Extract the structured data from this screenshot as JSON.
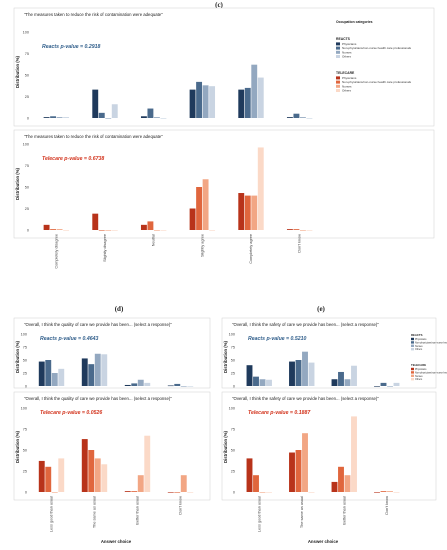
{
  "chart_data": [
    {
      "panel": "(c)",
      "type": "bar",
      "question": "\"The measures taken to reduce the risk of contamination were adequate\"",
      "annotation": "Reacts   p-value  = 0.2918",
      "ylabel": "Distribution (%)",
      "ylim": [
        0,
        100
      ],
      "yticks": [
        0,
        25,
        50,
        75,
        100
      ],
      "categories": [
        "Completely disagree",
        "Slightly disagree",
        "Neutral",
        "Slightly agree",
        "Completely agree",
        "Don't know"
      ],
      "grid": false,
      "series": [
        {
          "name": "Physicians",
          "color": "#1f3a5c",
          "values": [
            1,
            33,
            2,
            33,
            33,
            1
          ]
        },
        {
          "name": "Non-physicians/non-nurse health care professionals",
          "color": "#4a6a8c",
          "values": [
            2,
            6,
            11,
            42,
            35,
            5
          ]
        },
        {
          "name": "Nurses",
          "color": "#93a8c0",
          "values": [
            1,
            0,
            1,
            38,
            62,
            1
          ]
        },
        {
          "name": "Others",
          "color": "#c9d4e2",
          "values": [
            1,
            16,
            0,
            37,
            47,
            0
          ]
        }
      ],
      "legend": {
        "title": "Occupation categories",
        "group": "REACTS",
        "items": [
          "Physicians",
          "Non-physicians/non-nurse health care professionals",
          "Nurses",
          "Others"
        ]
      }
    },
    {
      "panel": "(c)",
      "type": "bar",
      "question": "\"The measures taken to reduce the risk of contamination were adequate\"",
      "annotation": "Telecare   p-value  = 0.6738",
      "ylabel": "Distribution (%)",
      "ylim": [
        0,
        100
      ],
      "yticks": [
        0,
        25,
        50,
        75,
        100
      ],
      "categories": [
        "Completely disagree",
        "Slightly disagree",
        "Neutral",
        "Slightly agree",
        "Completely agree",
        "Don't know"
      ],
      "grid": false,
      "series": [
        {
          "name": "Physicians",
          "color": "#b8331a",
          "values": [
            6,
            19,
            6,
            25,
            43,
            1
          ]
        },
        {
          "name": "Non-physicians/non-nurse health care professionals",
          "color": "#e0663d",
          "values": [
            1,
            0,
            10,
            50,
            40,
            1
          ]
        },
        {
          "name": "Nurses",
          "color": "#f2a684",
          "values": [
            1,
            0,
            0,
            59,
            40,
            0
          ]
        },
        {
          "name": "Others",
          "color": "#fbd9c7",
          "values": [
            0,
            0,
            0,
            0,
            96,
            0
          ]
        }
      ],
      "legend": {
        "group": "TELECARE",
        "items": [
          "Physicians",
          "Non-physicians/non-nurse health care professionals",
          "Nurses",
          "Others"
        ]
      }
    },
    {
      "panel": "(d)",
      "type": "bar",
      "question": "\"Overall, I think the quality of care we provide has been... (select a response)\"",
      "annotation": "Reacts   p-value  = 0.4643",
      "ylabel": "Distribution (%)",
      "ylim": [
        0,
        100
      ],
      "yticks": [
        0,
        25,
        50,
        75,
        100
      ],
      "categories": [
        "Less good than usual",
        "The same as usual",
        "Better than usual",
        "Don't know"
      ],
      "series": [
        {
          "name": "Physicians",
          "color": "#1f3a5c",
          "values": [
            47,
            53,
            2,
            1
          ]
        },
        {
          "name": "Non-physicians/non-nurse health care professionals",
          "color": "#4a6a8c",
          "values": [
            50,
            42,
            5,
            4
          ]
        },
        {
          "name": "Nurses",
          "color": "#93a8c0",
          "values": [
            25,
            62,
            12,
            0
          ]
        },
        {
          "name": "Others",
          "color": "#c9d4e2",
          "values": [
            33,
            61,
            6,
            0
          ]
        }
      ]
    },
    {
      "panel": "(d)",
      "type": "bar",
      "question": "\"Overall, I think the quality of care we provide has been... (select a response)\"",
      "annotation": "Telecare   p-value  = 0.0526",
      "ylabel": "Distribution (%)",
      "xlabel": "Answer choice",
      "ylim": [
        0,
        100
      ],
      "yticks": [
        0,
        25,
        50,
        75,
        100
      ],
      "categories": [
        "Less good than usual",
        "The same as usual",
        "Better than usual",
        "Don't know"
      ],
      "series": [
        {
          "name": "Physicians",
          "color": "#b8331a",
          "values": [
            37,
            63,
            1,
            0
          ]
        },
        {
          "name": "Non-physicians/non-nurse health care professionals",
          "color": "#e0663d",
          "values": [
            30,
            50,
            1,
            0
          ]
        },
        {
          "name": "Nurses",
          "color": "#f2a684",
          "values": [
            0,
            40,
            20,
            20
          ]
        },
        {
          "name": "Others",
          "color": "#fbd9c7",
          "values": [
            40,
            33,
            67,
            0
          ]
        }
      ]
    },
    {
      "panel": "(e)",
      "type": "bar",
      "question": "\"Overall, I think the safety of care we provide has been... (select a response)\"",
      "annotation": "Reacts   p-value  = 0.5210",
      "ylabel": "Distribution (%)",
      "ylim": [
        0,
        100
      ],
      "yticks": [
        0,
        25,
        50,
        75,
        100
      ],
      "categories": [
        "Less good than usual",
        "The same as usual",
        "Better than usual",
        "Don't know"
      ],
      "series": [
        {
          "name": "Physicians",
          "color": "#1f3a5c",
          "values": [
            40,
            47,
            13,
            0
          ]
        },
        {
          "name": "Non-physicians/non-nurse health care professionals",
          "color": "#4a6a8c",
          "values": [
            18,
            50,
            27,
            6
          ]
        },
        {
          "name": "Nurses",
          "color": "#93a8c0",
          "values": [
            13,
            66,
            13,
            0
          ]
        },
        {
          "name": "Others",
          "color": "#c9d4e2",
          "values": [
            12,
            45,
            39,
            6
          ]
        }
      ],
      "legend": {
        "groups": [
          {
            "group": "REACTS",
            "items": [
              "Physicians",
              "Non-physicians/non-nurse health care professionals",
              "Nurses",
              "Others"
            ]
          },
          {
            "group": "TELECARE",
            "items": [
              "Physicians",
              "Non-physicians/non-nurse health care professionals",
              "Nurses",
              "Others"
            ]
          }
        ]
      }
    },
    {
      "panel": "(e)",
      "type": "bar",
      "question": "\"Overall, I think the safety of care we provide has been... (select a response)\"",
      "annotation": "Telecare   p-value  = 0.1887",
      "ylabel": "Distribution (%)",
      "xlabel": "Answer choice",
      "ylim": [
        0,
        100
      ],
      "yticks": [
        0,
        25,
        50,
        75,
        100
      ],
      "categories": [
        "Less good than usual",
        "The same as usual",
        "Better than usual",
        "Don't know"
      ],
      "series": [
        {
          "name": "Physicians",
          "color": "#b8331a",
          "values": [
            40,
            47,
            12,
            0
          ]
        },
        {
          "name": "Non-physicians/non-nurse health care professionals",
          "color": "#e0663d",
          "values": [
            20,
            50,
            30,
            1
          ]
        },
        {
          "name": "Nurses",
          "color": "#f2a684",
          "values": [
            0,
            70,
            20,
            1
          ]
        },
        {
          "name": "Others",
          "color": "#fbd9c7",
          "values": [
            0,
            0,
            90,
            0
          ]
        }
      ]
    }
  ],
  "annotation_colors": {
    "reacts": "#2f5d8a",
    "telecare": "#d2321b"
  }
}
